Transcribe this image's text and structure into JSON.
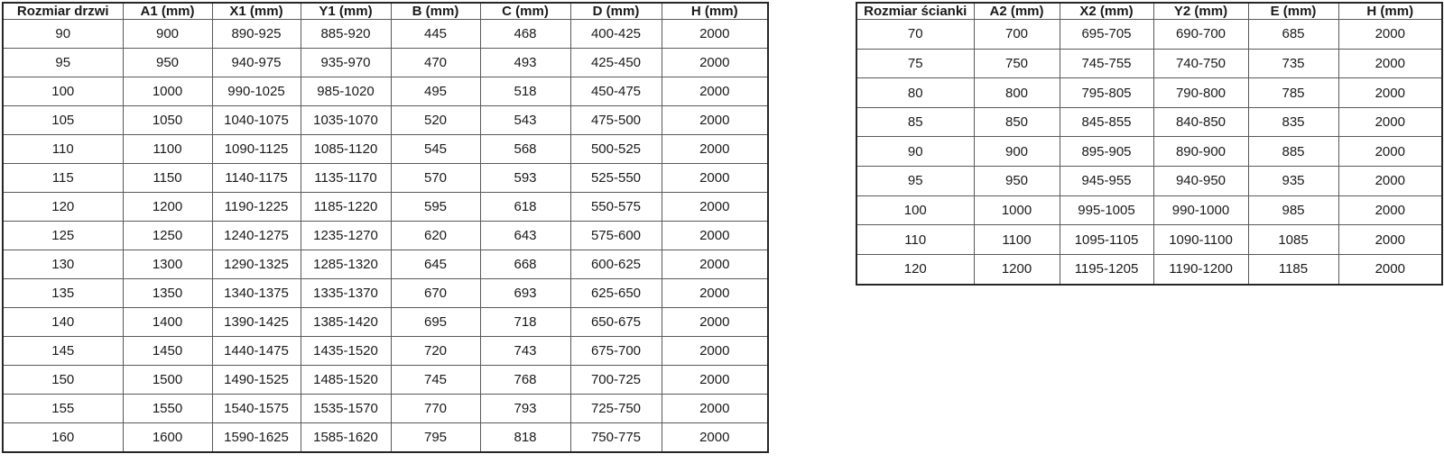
{
  "door_table": {
    "name": "door-size-table",
    "headers": [
      "Rozmiar drzwi",
      "A1 (mm)",
      "X1 (mm)",
      "Y1 (mm)",
      "B (mm)",
      "C (mm)",
      "D (mm)",
      "H (mm)"
    ],
    "rows": [
      [
        "90",
        "900",
        "890-925",
        "885-920",
        "445",
        "468",
        "400-425",
        "2000"
      ],
      [
        "95",
        "950",
        "940-975",
        "935-970",
        "470",
        "493",
        "425-450",
        "2000"
      ],
      [
        "100",
        "1000",
        "990-1025",
        "985-1020",
        "495",
        "518",
        "450-475",
        "2000"
      ],
      [
        "105",
        "1050",
        "1040-1075",
        "1035-1070",
        "520",
        "543",
        "475-500",
        "2000"
      ],
      [
        "110",
        "1100",
        "1090-1125",
        "1085-1120",
        "545",
        "568",
        "500-525",
        "2000"
      ],
      [
        "115",
        "1150",
        "1140-1175",
        "1135-1170",
        "570",
        "593",
        "525-550",
        "2000"
      ],
      [
        "120",
        "1200",
        "1190-1225",
        "1185-1220",
        "595",
        "618",
        "550-575",
        "2000"
      ],
      [
        "125",
        "1250",
        "1240-1275",
        "1235-1270",
        "620",
        "643",
        "575-600",
        "2000"
      ],
      [
        "130",
        "1300",
        "1290-1325",
        "1285-1320",
        "645",
        "668",
        "600-625",
        "2000"
      ],
      [
        "135",
        "1350",
        "1340-1375",
        "1335-1370",
        "670",
        "693",
        "625-650",
        "2000"
      ],
      [
        "140",
        "1400",
        "1390-1425",
        "1385-1420",
        "695",
        "718",
        "650-675",
        "2000"
      ],
      [
        "145",
        "1450",
        "1440-1475",
        "1435-1520",
        "720",
        "743",
        "675-700",
        "2000"
      ],
      [
        "150",
        "1500",
        "1490-1525",
        "1485-1520",
        "745",
        "768",
        "700-725",
        "2000"
      ],
      [
        "155",
        "1550",
        "1540-1575",
        "1535-1570",
        "770",
        "793",
        "725-750",
        "2000"
      ],
      [
        "160",
        "1600",
        "1590-1625",
        "1585-1620",
        "795",
        "818",
        "750-775",
        "2000"
      ]
    ]
  },
  "wall_table": {
    "name": "wall-panel-size-table",
    "headers": [
      "Rozmiar ścianki",
      "A2 (mm)",
      "X2 (mm)",
      "Y2 (mm)",
      "E (mm)",
      "H (mm)"
    ],
    "rows": [
      [
        "70",
        "700",
        "695-705",
        "690-700",
        "685",
        "2000"
      ],
      [
        "75",
        "750",
        "745-755",
        "740-750",
        "735",
        "2000"
      ],
      [
        "80",
        "800",
        "795-805",
        "790-800",
        "785",
        "2000"
      ],
      [
        "85",
        "850",
        "845-855",
        "840-850",
        "835",
        "2000"
      ],
      [
        "90",
        "900",
        "895-905",
        "890-900",
        "885",
        "2000"
      ],
      [
        "95",
        "950",
        "945-955",
        "940-950",
        "935",
        "2000"
      ],
      [
        "100",
        "1000",
        "995-1005",
        "990-1000",
        "985",
        "2000"
      ],
      [
        "110",
        "1100",
        "1095-1105",
        "1090-1100",
        "1085",
        "2000"
      ],
      [
        "120",
        "1200",
        "1195-1205",
        "1190-1200",
        "1185",
        "2000"
      ]
    ]
  }
}
